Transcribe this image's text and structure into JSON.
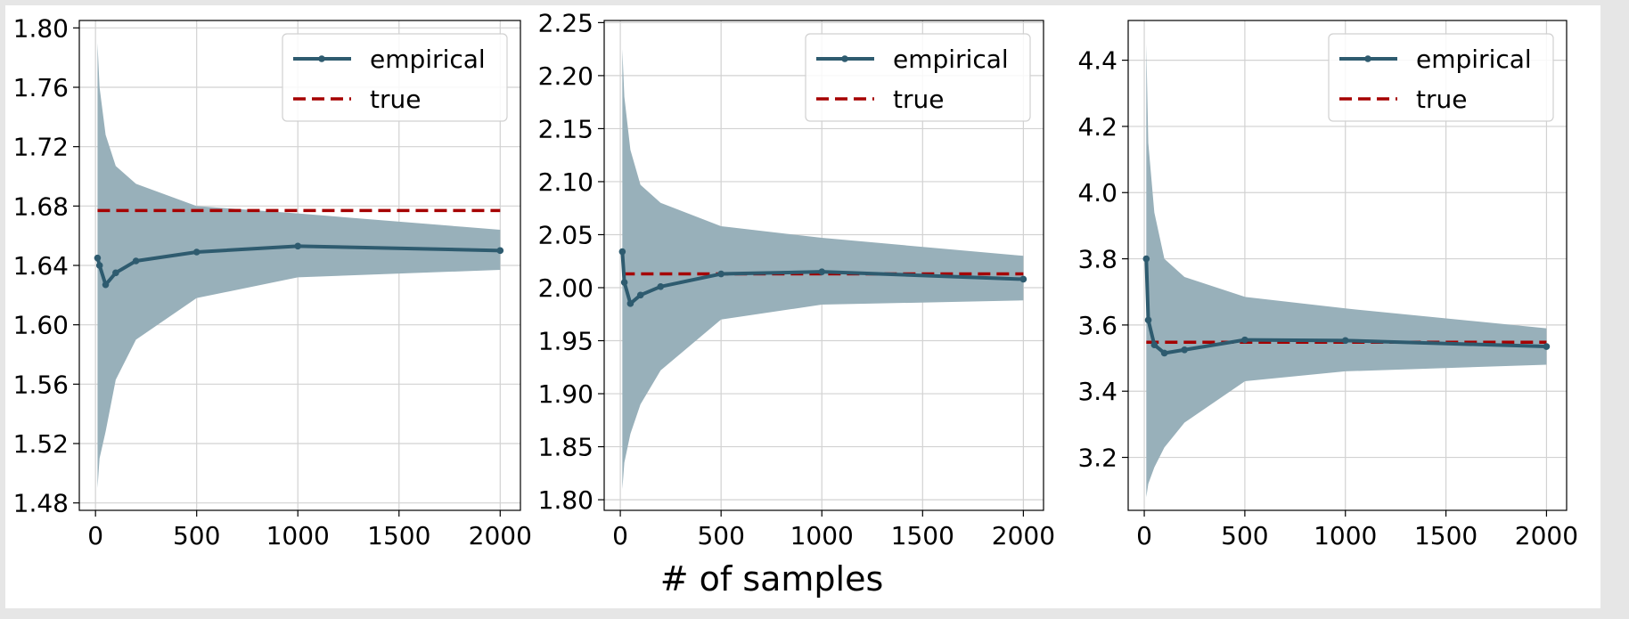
{
  "figure": {
    "xlabel": "# of samples"
  },
  "colors": {
    "empirical": "#2e5b6f",
    "band": "#98b0ba",
    "true": "#a50000",
    "grid": "#d2d2d2"
  },
  "chart_data": [
    {
      "type": "line",
      "x": [
        10,
        20,
        50,
        100,
        200,
        500,
        1000,
        2000
      ],
      "xlim": [
        -80,
        2100
      ],
      "ylim": [
        1.475,
        1.805
      ],
      "xticks": [
        0,
        500,
        1000,
        1500,
        2000
      ],
      "yticks": [
        1.48,
        1.52,
        1.56,
        1.6,
        1.64,
        1.68,
        1.72,
        1.76,
        1.8
      ],
      "ytick_decimals": 2,
      "grid": true,
      "legend_position": "top-right",
      "series": [
        {
          "name": "empirical",
          "values": [
            1.645,
            1.64,
            1.627,
            1.635,
            1.643,
            1.649,
            1.653,
            1.65
          ]
        },
        {
          "name": "true",
          "constant": 1.677
        }
      ],
      "band": {
        "upper": [
          1.79,
          1.76,
          1.728,
          1.707,
          1.695,
          1.68,
          1.675,
          1.664
        ],
        "lower": [
          1.49,
          1.51,
          1.528,
          1.563,
          1.59,
          1.618,
          1.632,
          1.637
        ]
      }
    },
    {
      "type": "line",
      "x": [
        10,
        20,
        50,
        100,
        200,
        500,
        1000,
        2000
      ],
      "xlim": [
        -80,
        2100
      ],
      "ylim": [
        1.79,
        2.252
      ],
      "xticks": [
        0,
        500,
        1000,
        1500,
        2000
      ],
      "yticks": [
        1.8,
        1.85,
        1.9,
        1.95,
        2.0,
        2.05,
        2.1,
        2.15,
        2.2,
        2.25
      ],
      "ytick_decimals": 2,
      "grid": true,
      "legend_position": "top-right",
      "series": [
        {
          "name": "empirical",
          "values": [
            2.034,
            2.005,
            1.985,
            1.993,
            2.001,
            2.013,
            2.015,
            2.008
          ]
        },
        {
          "name": "true",
          "constant": 2.013
        }
      ],
      "band": {
        "upper": [
          2.225,
          2.18,
          2.13,
          2.097,
          2.08,
          2.058,
          2.047,
          2.03
        ],
        "lower": [
          1.81,
          1.835,
          1.862,
          1.89,
          1.922,
          1.97,
          1.984,
          1.988
        ]
      }
    },
    {
      "type": "line",
      "x": [
        10,
        20,
        50,
        100,
        200,
        500,
        1000,
        2000
      ],
      "xlim": [
        -80,
        2100
      ],
      "ylim": [
        3.04,
        4.52
      ],
      "xticks": [
        0,
        500,
        1000,
        1500,
        2000
      ],
      "yticks": [
        3.2,
        3.4,
        3.6,
        3.8,
        4.0,
        4.2,
        4.4
      ],
      "ytick_decimals": 1,
      "grid": true,
      "legend_position": "top-right",
      "series": [
        {
          "name": "empirical",
          "values": [
            3.8,
            3.615,
            3.54,
            3.515,
            3.525,
            3.555,
            3.553,
            3.535
          ]
        },
        {
          "name": "true",
          "constant": 3.548
        }
      ],
      "band": {
        "upper": [
          4.45,
          4.15,
          3.94,
          3.8,
          3.745,
          3.685,
          3.65,
          3.59
        ],
        "lower": [
          3.08,
          3.12,
          3.17,
          3.23,
          3.305,
          3.43,
          3.46,
          3.48
        ]
      }
    }
  ]
}
